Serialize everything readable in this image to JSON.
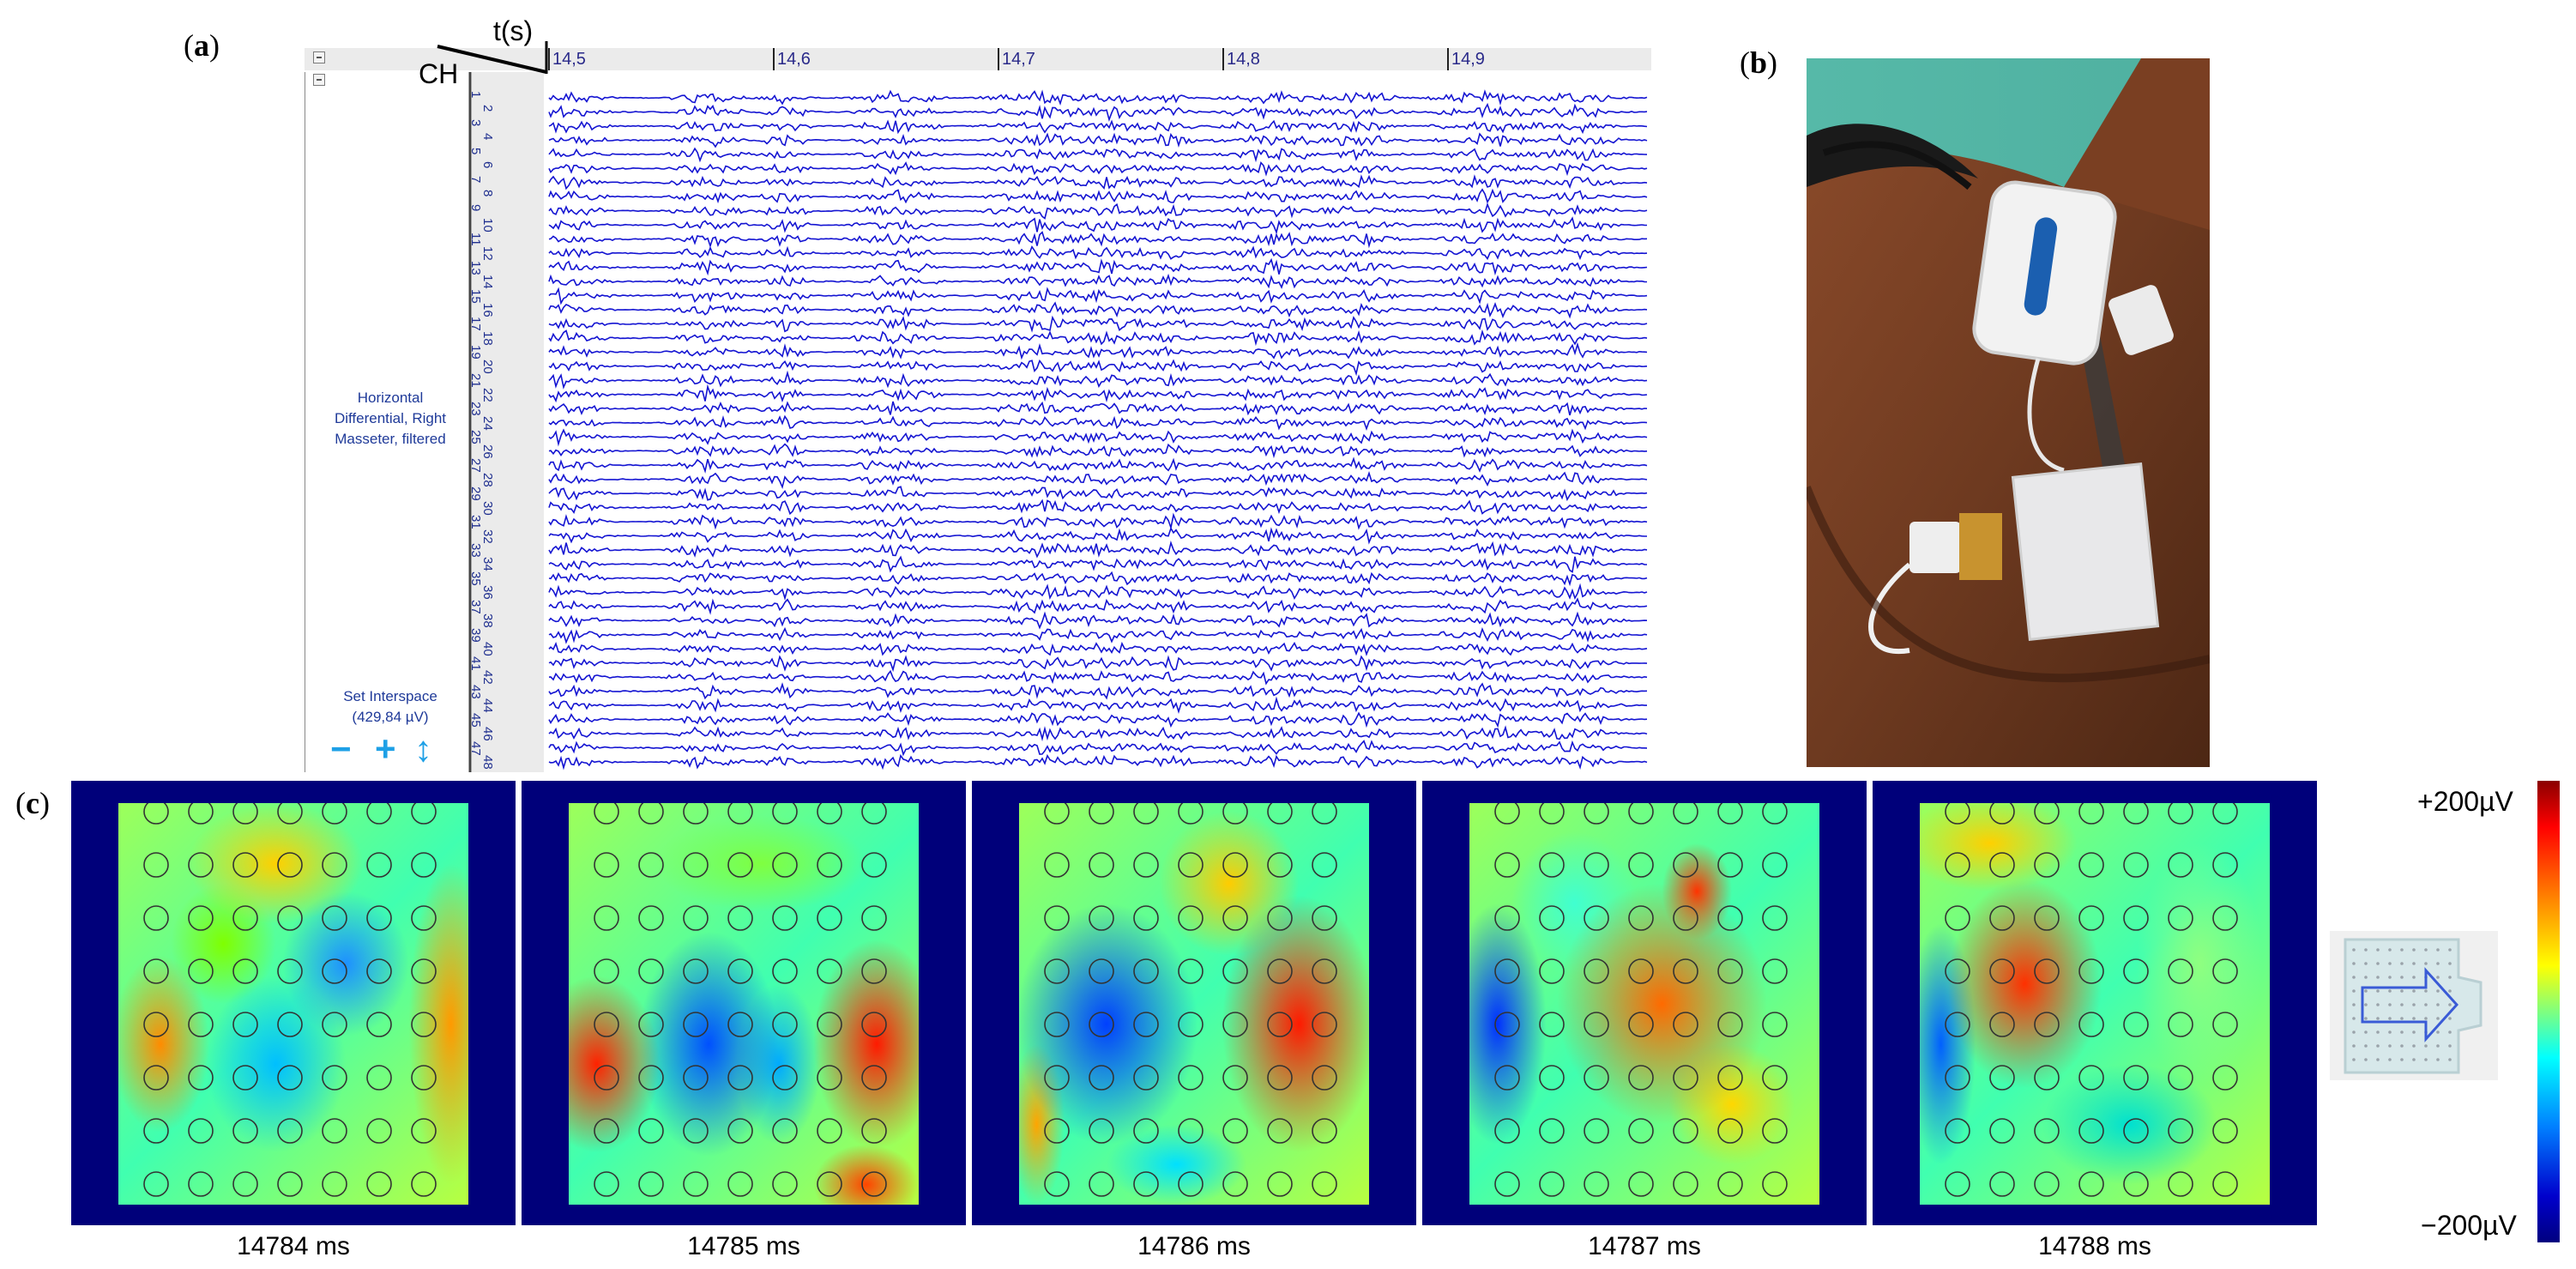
{
  "figure": {
    "panel_labels": {
      "a": "(a)",
      "a_letter": "a",
      "b": "(b)",
      "b_letter": "b",
      "c": "(c)",
      "c_letter": "c"
    }
  },
  "viewer": {
    "time_axis_label": "t(s)",
    "channel_axis_label": "CH",
    "time_ticks": [
      "14,5",
      "14,6",
      "14,7",
      "14,8",
      "14,9"
    ],
    "channels": [
      "1",
      "2",
      "3",
      "4",
      "5",
      "6",
      "7",
      "8",
      "9",
      "10",
      "11",
      "12",
      "13",
      "14",
      "15",
      "16",
      "17",
      "18",
      "19",
      "20",
      "21",
      "22",
      "23",
      "24",
      "25",
      "26",
      "27",
      "28",
      "29",
      "30",
      "31",
      "32",
      "33",
      "34",
      "35",
      "36",
      "37",
      "38",
      "39",
      "40",
      "41",
      "42",
      "43",
      "44",
      "45",
      "46",
      "47",
      "48"
    ],
    "signal_description_line1": "Horizontal",
    "signal_description_line2": "Differential, Right",
    "signal_description_line3": "Masseter, filtered",
    "interspace_label": "Set Interspace",
    "interspace_value": "(429,84 µV)",
    "decrease_symbol": "−",
    "increase_symbol": "+",
    "resize_symbol": "↕",
    "trace_color": "#1414d2"
  },
  "photo": {
    "icon": "horse-with-sensor-photo"
  },
  "maps": {
    "frames": [
      {
        "caption": "14784 ms"
      },
      {
        "caption": "14785 ms"
      },
      {
        "caption": "14786 ms"
      },
      {
        "caption": "14787 ms"
      },
      {
        "caption": "14788 ms"
      }
    ],
    "frame_color": "#00007a"
  },
  "colorbar": {
    "max_label": "+200µV",
    "min_label": "−200µV"
  }
}
